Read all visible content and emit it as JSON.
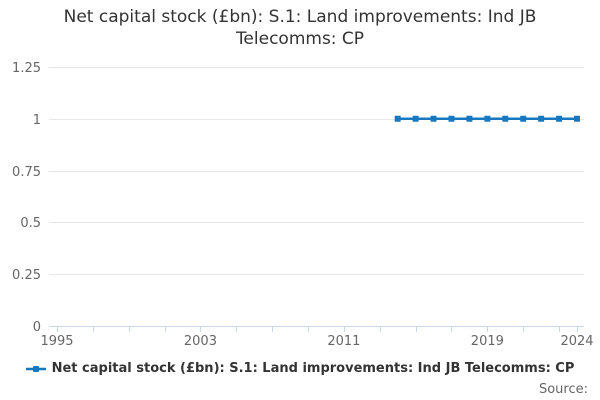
{
  "title": "Net capital stock (£bn): S.1: Land improvements: Ind JB Telecomms: CP",
  "legend": {
    "label": "Net capital stock (£bn): S.1: Land improvements: Ind JB Telecomms: CP"
  },
  "source_label": "Source:",
  "colors": {
    "series": "#1878bf",
    "grid": "#e6e6e6",
    "axis_line": "#ccd6eb",
    "tick_label": "#666666",
    "title": "#333333"
  },
  "chart_data": {
    "type": "line",
    "title": "Net capital stock (£bn): S.1: Land improvements: Ind JB Telecomms: CP",
    "xlabel": "",
    "ylabel": "",
    "grid": "horizontal",
    "legend_position": "bottom",
    "x": [
      2014,
      2015,
      2016,
      2017,
      2018,
      2019,
      2020,
      2021,
      2022,
      2023,
      2024
    ],
    "series": [
      {
        "name": "Net capital stock (£bn): S.1: Land improvements: Ind JB Telecomms: CP",
        "values": [
          1,
          1,
          1,
          1,
          1,
          1,
          1,
          1,
          1,
          1,
          1
        ]
      }
    ],
    "x_axis": {
      "min": 1995,
      "max": 2024,
      "tick_interval": 2,
      "labeled_ticks": [
        1995,
        2003,
        2011,
        2019,
        2024
      ]
    },
    "y_axis": {
      "min": 0,
      "max": 1.25,
      "ticks": [
        0,
        0.25,
        0.5,
        0.75,
        1,
        1.25
      ]
    }
  }
}
